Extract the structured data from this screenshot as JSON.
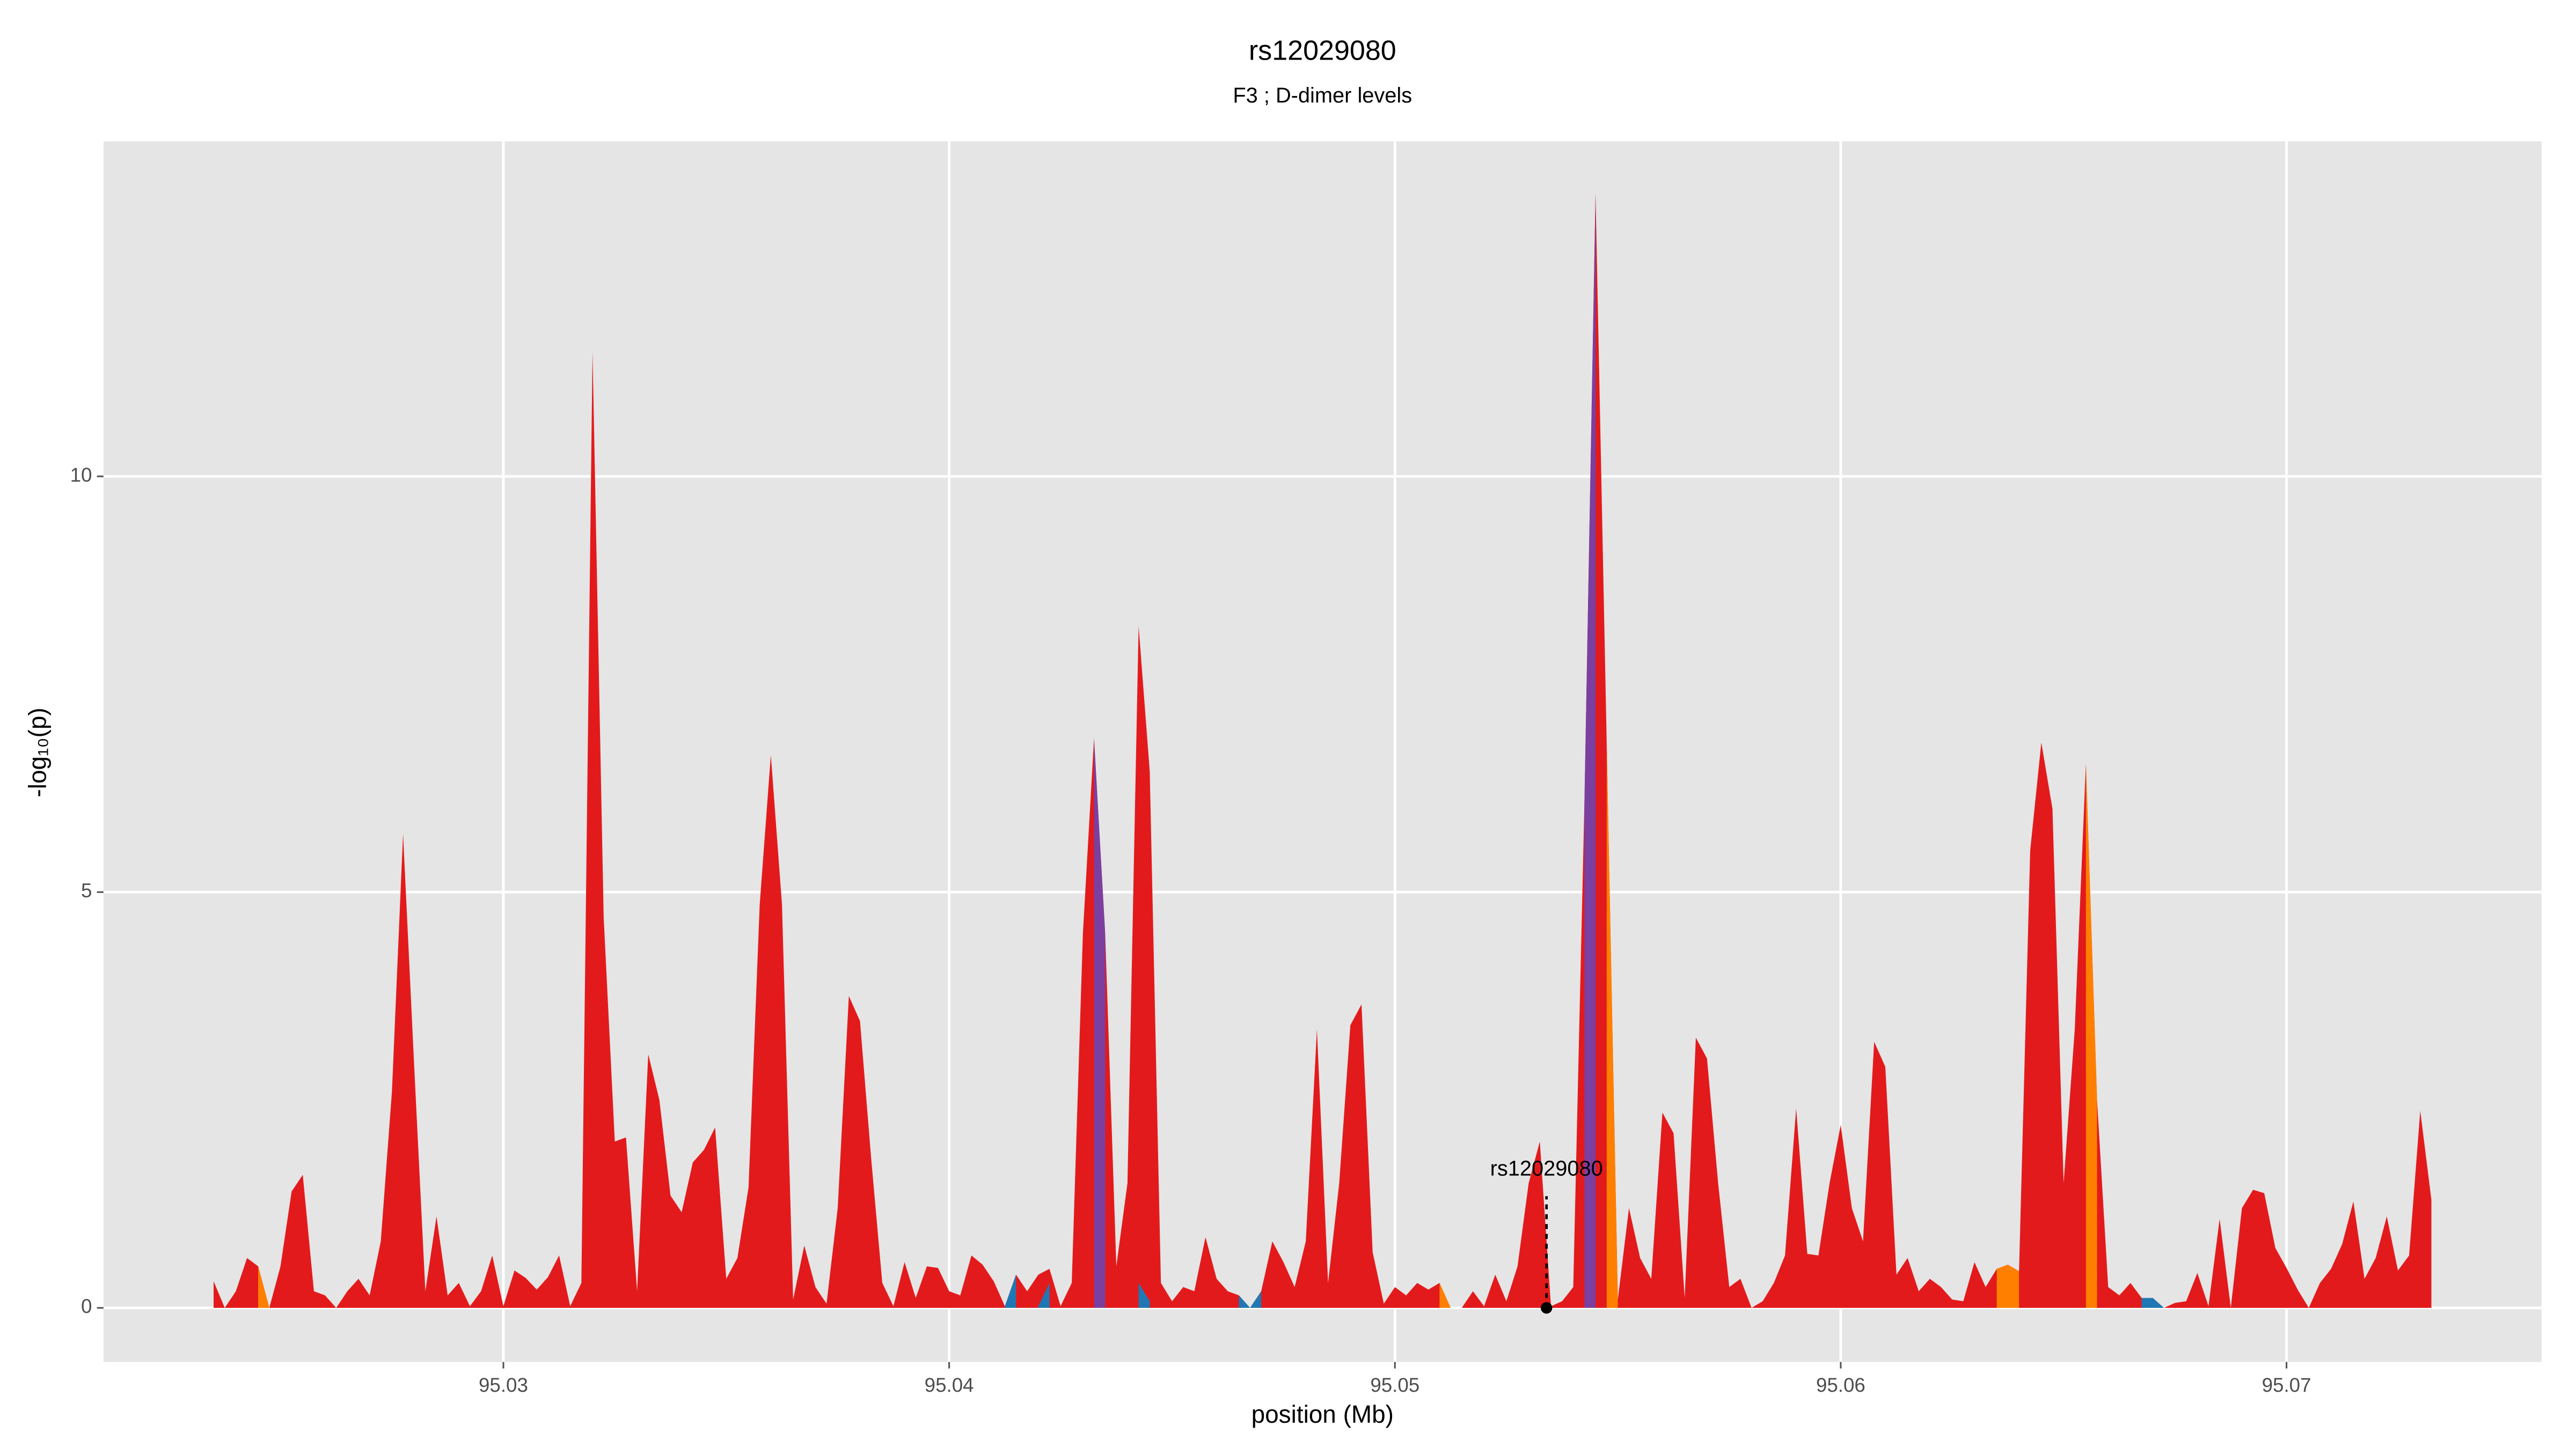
{
  "chart_data": {
    "type": "area",
    "title": "rs12029080",
    "subtitle": "F3 ; D-dimer levels",
    "xlabel": "position (Mb)",
    "ylabel": "-log₁₀(p)",
    "xlim": [
      95.02103,
      95.07572
    ],
    "ylim": [
      -0.65,
      14.03
    ],
    "xticks": [
      95.03,
      95.04,
      95.05,
      95.06,
      95.07
    ],
    "yticks": [
      0,
      5,
      10
    ],
    "grid": true,
    "background": "#e5e5e5",
    "series": [
      {
        "color": "#e31a1c",
        "x": [
          95.0235,
          95.02375,
          95.024,
          95.02425,
          95.0245,
          95.02475,
          95.025,
          95.02525,
          95.0255,
          95.02575,
          95.026,
          95.02625,
          95.0265,
          95.02675,
          95.027,
          95.02725,
          95.0275,
          95.02775,
          95.028,
          95.02825,
          95.0285,
          95.02875,
          95.029,
          95.02925,
          95.0295,
          95.02975,
          95.03,
          95.03025,
          95.0305,
          95.03075,
          95.031,
          95.03125,
          95.0315,
          95.03175,
          95.032,
          95.03225,
          95.0325,
          95.03275,
          95.033,
          95.03325,
          95.0335,
          95.03375,
          95.034,
          95.03425,
          95.0345,
          95.03475,
          95.035,
          95.03525,
          95.0355,
          95.03575,
          95.036,
          95.03625,
          95.0365,
          95.03675,
          95.037,
          95.03725,
          95.0375,
          95.03775,
          95.038,
          95.03825,
          95.0385,
          95.03875,
          95.039,
          95.03925,
          95.0395,
          95.03975,
          95.04,
          95.04025,
          95.0405,
          95.04075,
          95.041,
          95.04125,
          95.0415,
          95.04175,
          95.042,
          95.04225,
          95.0425,
          95.04275,
          95.043,
          95.04325,
          95.0435,
          95.04375,
          95.044,
          95.04425,
          95.0445,
          95.04475,
          95.045,
          95.04525,
          95.0455,
          95.04575,
          95.046,
          95.04625,
          95.0465,
          95.04675,
          95.047,
          95.04725,
          95.0475,
          95.04775,
          95.048,
          95.04825,
          95.0485,
          95.04875,
          95.049,
          95.04925,
          95.0495,
          95.04975,
          95.05,
          95.05025,
          95.0505,
          95.05075,
          95.051,
          95.05125,
          95.0515,
          95.05175,
          95.052,
          95.05225,
          95.0525,
          95.05275,
          95.053,
          95.05325,
          95.0535,
          95.05375,
          95.054,
          95.05425,
          95.0545,
          95.05475,
          95.055,
          95.05525,
          95.0555,
          95.05575,
          95.056,
          95.05625,
          95.0565,
          95.05675,
          95.057,
          95.05725,
          95.0575,
          95.05775,
          95.058,
          95.05825,
          95.0585,
          95.05875,
          95.059,
          95.05925,
          95.0595,
          95.05975,
          95.06,
          95.06025,
          95.0605,
          95.06075,
          95.061,
          95.06125,
          95.0615,
          95.06175,
          95.062,
          95.06225,
          95.0625,
          95.06275,
          95.063,
          95.06325,
          95.0635,
          95.06375,
          95.064,
          95.06425,
          95.0645,
          95.06475,
          95.065,
          95.06525,
          95.0655,
          95.06575,
          95.066,
          95.06625,
          95.0665,
          95.06675,
          95.067,
          95.06725,
          95.0675,
          95.06775,
          95.068,
          95.06825,
          95.0685,
          95.06875,
          95.069,
          95.06925,
          95.0695,
          95.06975,
          95.07,
          95.07025,
          95.0705,
          95.07075,
          95.071,
          95.07125,
          95.0715,
          95.07175,
          95.072,
          95.07225,
          95.0725,
          95.07275,
          95.073,
          95.07325
        ],
        "values": [
          0.32,
          0,
          0.2,
          0.6,
          0.5,
          0,
          0.5,
          1.4,
          1.6,
          0.2,
          0.15,
          0,
          0.2,
          0.35,
          0.15,
          0.8,
          2.6,
          5.7,
          2.9,
          0.2,
          1.1,
          0.15,
          0.3,
          0.02,
          0.2,
          0.63,
          0.02,
          0.45,
          0.36,
          0.22,
          0.37,
          0.63,
          0.02,
          0.3,
          11.5,
          4.7,
          2,
          2.05,
          0.2,
          3.05,
          2.5,
          1.35,
          1.15,
          1.75,
          1.9,
          2.17,
          0.35,
          0.6,
          1.45,
          4.85,
          6.65,
          4.85,
          0.1,
          0.75,
          0.25,
          0.05,
          1.2,
          3.75,
          3.45,
          1.8,
          0.3,
          0.02,
          0.55,
          0.12,
          0.5,
          0.48,
          0.2,
          0.15,
          0.63,
          0.52,
          0.32,
          0.02,
          0.4,
          0.2,
          0.4,
          0.47,
          0.02,
          0.3,
          4.5,
          6.85,
          4.5,
          0.5,
          1.5,
          8.2,
          6.45,
          0.3,
          0.08,
          0.25,
          0.2,
          0.85,
          0.35,
          0.2,
          0.15,
          0,
          0.2,
          0.8,
          0.55,
          0.25,
          0.8,
          3.35,
          0.3,
          1.5,
          3.4,
          3.65,
          0.67,
          0.05,
          0.25,
          0.15,
          0.3,
          0.22,
          0.3,
          0,
          0,
          0.2,
          0.02,
          0.4,
          0.08,
          0.5,
          1.5,
          2,
          0.02,
          0.08,
          0.25,
          6.05,
          13.4,
          6.8,
          0.1,
          1.2,
          0.6,
          0.35,
          2.35,
          2.1,
          0.12,
          3.25,
          3,
          1.5,
          0.25,
          0.35,
          0,
          0.08,
          0.3,
          0.63,
          2.4,
          0.65,
          0.63,
          1.5,
          2.2,
          1.2,
          0.8,
          3.2,
          2.9,
          0.4,
          0.6,
          0.2,
          0.35,
          0.25,
          0.1,
          0.08,
          0.55,
          0.25,
          0.47,
          0.52,
          0.44,
          5.5,
          6.8,
          6,
          1.5,
          3.35,
          6.55,
          2.5,
          0.25,
          0.15,
          0.3,
          0.12,
          0.12,
          0,
          0.06,
          0.08,
          0.42,
          0.02,
          1.07,
          0,
          1.2,
          1.42,
          1.38,
          0.72,
          0.48,
          0.22,
          0,
          0.3,
          0.47,
          0.77,
          1.28,
          0.35,
          0.6,
          1.1,
          0.45,
          0.63,
          2.37,
          1.3
        ]
      },
      {
        "color": "#7b3fa0",
        "x": [
          95.04325,
          95.0435
        ],
        "values": [
          6.85,
          4.5
        ]
      },
      {
        "color": "#7b3fa0",
        "x": [
          95.05425,
          95.0545
        ],
        "values": [
          6.05,
          13.4
        ]
      },
      {
        "color": "#ff7f00",
        "x": [
          95.0245,
          95.02475
        ],
        "values": [
          0.5,
          0
        ]
      },
      {
        "color": "#ff7f00",
        "x": [
          95.051,
          95.05125
        ],
        "values": [
          0.3,
          0
        ]
      },
      {
        "color": "#ff7f00",
        "x": [
          95.05475,
          95.055
        ],
        "values": [
          6.8,
          0.1
        ]
      },
      {
        "color": "#ff7f00",
        "x": [
          95.0635,
          95.06375,
          95.064
        ],
        "values": [
          0.47,
          0.52,
          0.44
        ]
      },
      {
        "color": "#ff7f00",
        "x": [
          95.0655,
          95.06575
        ],
        "values": [
          6.55,
          2.5
        ]
      },
      {
        "color": "#1f78b4",
        "x": [
          95.04125,
          95.0415
        ],
        "values": [
          0.02,
          0.4
        ]
      },
      {
        "color": "#1f78b4",
        "x": [
          95.042,
          95.04225
        ],
        "values": [
          0.02,
          0.3
        ]
      },
      {
        "color": "#1f78b4",
        "x": [
          95.04425,
          95.0445
        ],
        "values": [
          0.3,
          0.08
        ]
      },
      {
        "color": "#1f78b4",
        "x": [
          95.0465,
          95.04675,
          95.047
        ],
        "values": [
          0.15,
          0,
          0.2
        ]
      },
      {
        "color": "#1f78b4",
        "x": [
          95.06675,
          95.067,
          95.06725
        ],
        "values": [
          0.12,
          0.12,
          0
        ]
      }
    ],
    "annotations": [
      {
        "text": "rs12029080",
        "x": 95.0534,
        "y": 0
      }
    ]
  }
}
